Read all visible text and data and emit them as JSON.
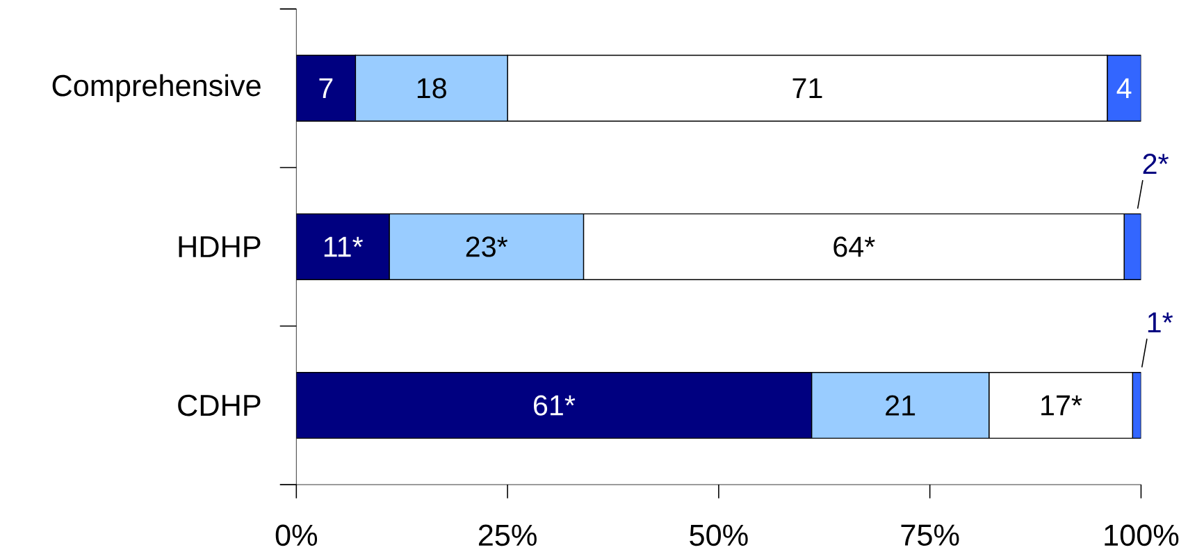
{
  "chart_data": {
    "type": "bar",
    "orientation": "horizontal",
    "stacked": true,
    "categories": [
      "Comprehensive",
      "HDHP",
      "CDHP"
    ],
    "series": [
      {
        "color": "#000080",
        "values": [
          7,
          11,
          61
        ],
        "value_labels": [
          "7",
          "11*",
          "61*"
        ]
      },
      {
        "color": "#99ccff",
        "values": [
          18,
          23,
          21
        ],
        "value_labels": [
          "18",
          "23*",
          "21"
        ]
      },
      {
        "color": "#ffffff",
        "values": [
          71,
          64,
          17
        ],
        "value_labels": [
          "71",
          "64*",
          "17*"
        ]
      },
      {
        "color": "#3366ff",
        "values": [
          4,
          2,
          1
        ],
        "value_labels": [
          "4",
          "2*",
          "1*"
        ]
      }
    ],
    "xlim": [
      0,
      100
    ],
    "xticks": [
      {
        "value": 0,
        "label": "0%"
      },
      {
        "value": 25,
        "label": "25%"
      },
      {
        "value": 50,
        "label": "50%"
      },
      {
        "value": 75,
        "label": "75%"
      },
      {
        "value": 100,
        "label": "100%"
      }
    ]
  }
}
